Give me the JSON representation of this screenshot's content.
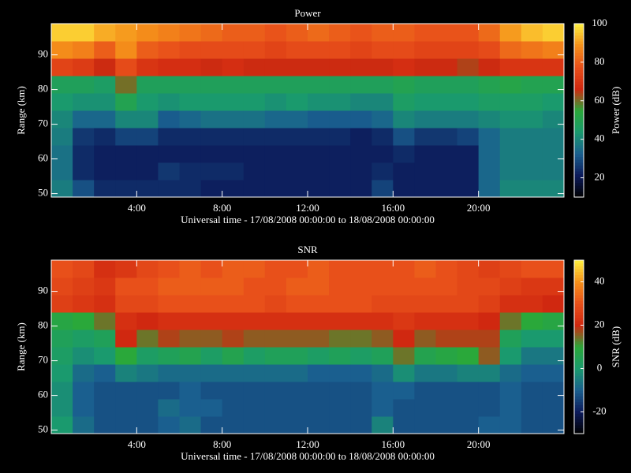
{
  "chart_data": [
    {
      "type": "heatmap",
      "title": "Power",
      "xlabel": "Universal time - 17/08/2008 00:00:00 to 18/08/2008 00:00:00",
      "ylabel": "Range (km)",
      "colorbar_label": "Power (dB)",
      "x": [
        0,
        1,
        2,
        3,
        4,
        5,
        6,
        7,
        8,
        9,
        10,
        11,
        12,
        13,
        14,
        15,
        16,
        17,
        18,
        19,
        20,
        21,
        22,
        23,
        24
      ],
      "y": [
        49,
        54,
        59,
        64,
        69,
        74,
        79,
        84,
        89,
        94,
        99
      ],
      "xlim": [
        0,
        24
      ],
      "ylim": [
        49,
        99
      ],
      "xticks": [
        {
          "value": 4,
          "label": "4:00"
        },
        {
          "value": 8,
          "label": "8:00"
        },
        {
          "value": 12,
          "label": "12:00"
        },
        {
          "value": 16,
          "label": "16:00"
        },
        {
          "value": 20,
          "label": "20:00"
        }
      ],
      "yticks": [
        50,
        60,
        70,
        80,
        90
      ],
      "zlim": [
        10,
        100
      ],
      "zticks": [
        20,
        40,
        60,
        80,
        100
      ],
      "colorscale": [
        "#000000",
        "#0c1a5a",
        "#1a5f8f",
        "#1a9a6e",
        "#2aa83a",
        "#d02810",
        "#e8501a",
        "#f5901a",
        "#fff040"
      ],
      "z": [
        [
          38,
          30,
          24,
          24,
          24,
          24,
          24,
          22,
          22,
          22,
          22,
          22,
          22,
          22,
          22,
          28,
          22,
          22,
          22,
          22,
          34,
          40,
          40,
          40
        ],
        [
          36,
          24,
          22,
          22,
          22,
          26,
          24,
          24,
          24,
          22,
          22,
          22,
          22,
          22,
          22,
          24,
          22,
          22,
          22,
          22,
          34,
          38,
          38,
          38
        ],
        [
          36,
          24,
          22,
          22,
          22,
          22,
          22,
          22,
          22,
          22,
          22,
          22,
          22,
          22,
          22,
          22,
          24,
          22,
          22,
          22,
          34,
          38,
          38,
          38
        ],
        [
          38,
          26,
          24,
          28,
          28,
          24,
          24,
          24,
          24,
          24,
          24,
          24,
          24,
          24,
          22,
          24,
          30,
          26,
          26,
          28,
          34,
          38,
          38,
          38
        ],
        [
          40,
          34,
          34,
          40,
          40,
          32,
          34,
          36,
          36,
          36,
          34,
          34,
          32,
          32,
          32,
          34,
          40,
          38,
          38,
          38,
          40,
          42,
          42,
          40
        ],
        [
          44,
          42,
          42,
          50,
          44,
          42,
          44,
          44,
          44,
          44,
          42,
          44,
          42,
          42,
          40,
          40,
          46,
          44,
          44,
          44,
          46,
          46,
          46,
          44
        ],
        [
          48,
          48,
          46,
          60,
          48,
          48,
          48,
          48,
          48,
          48,
          48,
          48,
          48,
          48,
          48,
          48,
          50,
          48,
          48,
          48,
          50,
          52,
          50,
          50
        ],
        [
          74,
          72,
          66,
          76,
          70,
          68,
          68,
          66,
          68,
          66,
          66,
          66,
          66,
          66,
          66,
          66,
          68,
          66,
          66,
          64,
          66,
          70,
          70,
          70
        ],
        [
          88,
          86,
          80,
          88,
          80,
          78,
          76,
          76,
          76,
          76,
          74,
          76,
          76,
          76,
          74,
          76,
          76,
          74,
          74,
          74,
          76,
          82,
          84,
          86
        ],
        [
          96,
          96,
          92,
          90,
          88,
          86,
          84,
          82,
          80,
          80,
          78,
          80,
          82,
          80,
          78,
          80,
          80,
          78,
          78,
          78,
          82,
          90,
          94,
          96
        ]
      ]
    },
    {
      "type": "heatmap",
      "title": "SNR",
      "xlabel": "Universal time - 17/08/2008 00:00:00 to 18/08/2008 00:00:00",
      "ylabel": "Range (km)",
      "colorbar_label": "SNR (dB)",
      "x": [
        0,
        1,
        2,
        3,
        4,
        5,
        6,
        7,
        8,
        9,
        10,
        11,
        12,
        13,
        14,
        15,
        16,
        17,
        18,
        19,
        20,
        21,
        22,
        23,
        24
      ],
      "y": [
        49,
        54,
        59,
        64,
        69,
        74,
        79,
        84,
        89,
        94,
        99
      ],
      "xlim": [
        0,
        24
      ],
      "ylim": [
        49,
        99
      ],
      "xticks": [
        {
          "value": 4,
          "label": "4:00"
        },
        {
          "value": 8,
          "label": "8:00"
        },
        {
          "value": 12,
          "label": "12:00"
        },
        {
          "value": 16,
          "label": "16:00"
        },
        {
          "value": 20,
          "label": "20:00"
        }
      ],
      "yticks": [
        50,
        60,
        70,
        80,
        90
      ],
      "zlim": [
        -30,
        50
      ],
      "zticks": [
        -20,
        0,
        20,
        40
      ],
      "colorscale": [
        "#000000",
        "#0c1a5a",
        "#1a5f8f",
        "#1a9a6e",
        "#2aa83a",
        "#d02810",
        "#e8501a",
        "#f5901a",
        "#fff040"
      ],
      "z": [
        [
          0,
          -8,
          -12,
          -12,
          -12,
          -10,
          -8,
          -12,
          -12,
          -12,
          -12,
          -12,
          -12,
          -12,
          -12,
          -4,
          -12,
          -12,
          -12,
          -12,
          -10,
          -10,
          -12,
          -12
        ],
        [
          -2,
          -10,
          -12,
          -12,
          -12,
          -8,
          -10,
          -10,
          -12,
          -12,
          -12,
          -12,
          -12,
          -12,
          -12,
          -10,
          -12,
          -12,
          -12,
          -12,
          -12,
          -10,
          -12,
          -12
        ],
        [
          -2,
          -10,
          -12,
          -12,
          -12,
          -12,
          -10,
          -12,
          -12,
          -12,
          -12,
          -12,
          -12,
          -12,
          -12,
          -10,
          -10,
          -12,
          -12,
          -12,
          -12,
          -10,
          -12,
          -12
        ],
        [
          0,
          -8,
          -10,
          -4,
          -6,
          -8,
          -8,
          -8,
          -8,
          -8,
          -8,
          -8,
          -10,
          -10,
          -10,
          -8,
          -2,
          -6,
          -6,
          -4,
          -4,
          -8,
          -10,
          -10
        ],
        [
          2,
          -2,
          0,
          10,
          2,
          4,
          6,
          2,
          6,
          2,
          4,
          4,
          2,
          4,
          2,
          4,
          14,
          6,
          8,
          10,
          16,
          0,
          -6,
          -6
        ],
        [
          4,
          2,
          4,
          20,
          14,
          18,
          16,
          16,
          18,
          16,
          16,
          16,
          16,
          14,
          14,
          16,
          20,
          16,
          18,
          18,
          18,
          4,
          0,
          0
        ],
        [
          8,
          10,
          14,
          22,
          20,
          22,
          22,
          22,
          22,
          22,
          22,
          22,
          22,
          22,
          22,
          22,
          24,
          22,
          22,
          22,
          20,
          14,
          10,
          8
        ],
        [
          26,
          24,
          22,
          28,
          28,
          30,
          30,
          30,
          30,
          30,
          28,
          30,
          30,
          30,
          30,
          28,
          28,
          28,
          28,
          28,
          26,
          22,
          22,
          20
        ],
        [
          28,
          26,
          24,
          30,
          30,
          32,
          32,
          32,
          32,
          30,
          30,
          32,
          32,
          30,
          30,
          30,
          30,
          30,
          30,
          28,
          28,
          26,
          24,
          24
        ],
        [
          30,
          28,
          22,
          24,
          28,
          30,
          32,
          30,
          32,
          32,
          30,
          30,
          32,
          30,
          30,
          30,
          30,
          32,
          30,
          28,
          26,
          28,
          30,
          30
        ]
      ]
    }
  ]
}
